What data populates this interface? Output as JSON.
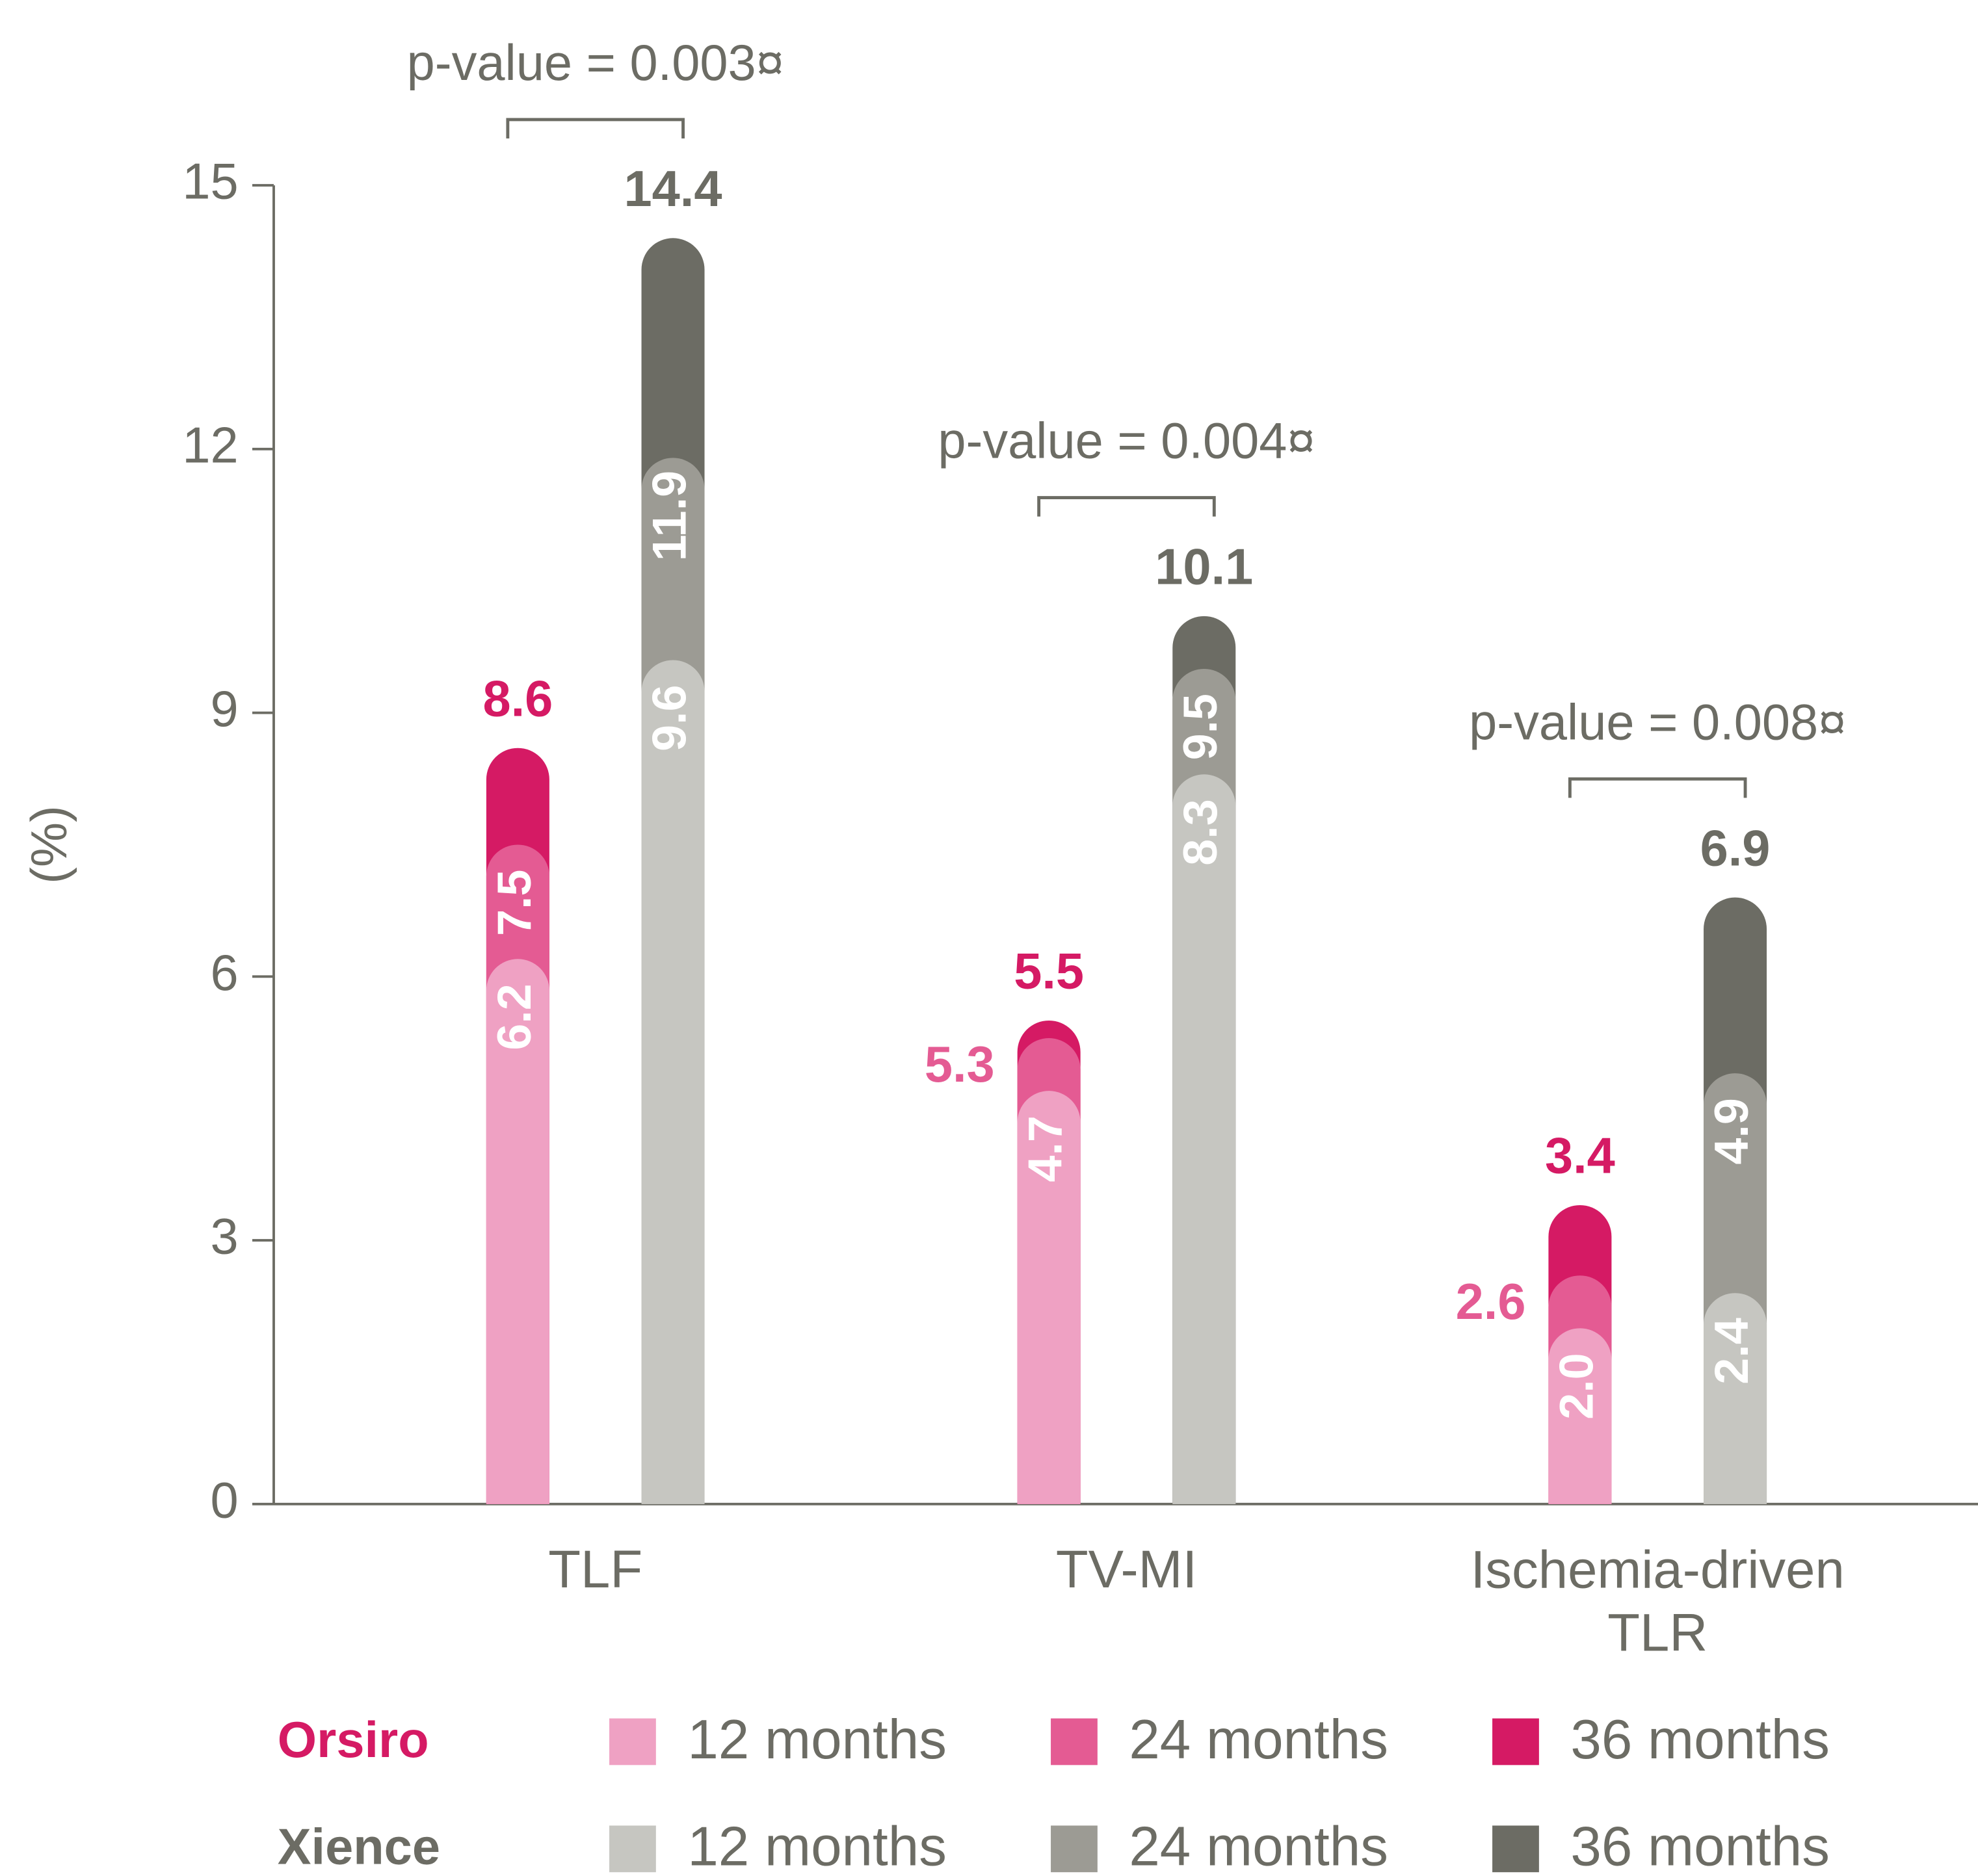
{
  "chart_data": {
    "type": "bar",
    "ylabel": "(%)",
    "categories": [
      "TLF",
      "TV-MI",
      "Ischemia-driven\nTLR"
    ],
    "ylim": [
      0,
      15
    ],
    "yticks": [
      0,
      3,
      6,
      9,
      12,
      15
    ],
    "annotations": [
      "p-value = 0.003¤",
      "p-value = 0.004¤",
      "p-value = 0.008¤"
    ],
    "groups": [
      {
        "name": "Orsiro",
        "color": "#d51a64",
        "series": [
          {
            "name": "12 months",
            "color": "#efa1c3",
            "values": [
              6.2,
              4.7,
              2.0
            ],
            "value_labels": [
              "6.2",
              "4.7",
              "2.0"
            ]
          },
          {
            "name": "24 months",
            "color": "#e45b93",
            "values": [
              7.5,
              5.3,
              2.6
            ],
            "value_labels": [
              "7.5",
              "5.3",
              "2.6"
            ]
          },
          {
            "name": "36 months",
            "color": "#d51a64",
            "values": [
              8.6,
              5.5,
              3.4
            ],
            "value_labels": [
              "8.6",
              "5.5",
              "3.4"
            ]
          }
        ]
      },
      {
        "name": "Xience",
        "color": "#6c6c64",
        "series": [
          {
            "name": "12 months",
            "color": "#c6c6c1",
            "values": [
              9.6,
              8.3,
              2.4
            ],
            "value_labels": [
              "9.6",
              "8.3",
              "2.4"
            ]
          },
          {
            "name": "24 months",
            "color": "#9c9b94",
            "values": [
              11.9,
              9.5,
              4.9
            ],
            "value_labels": [
              "11.9",
              "9.5",
              "4.9"
            ]
          },
          {
            "name": "36 months",
            "color": "#6c6c64",
            "values": [
              14.4,
              10.1,
              6.9
            ],
            "value_labels": [
              "14.4",
              "10.1",
              "6.9"
            ]
          }
        ]
      }
    ]
  }
}
